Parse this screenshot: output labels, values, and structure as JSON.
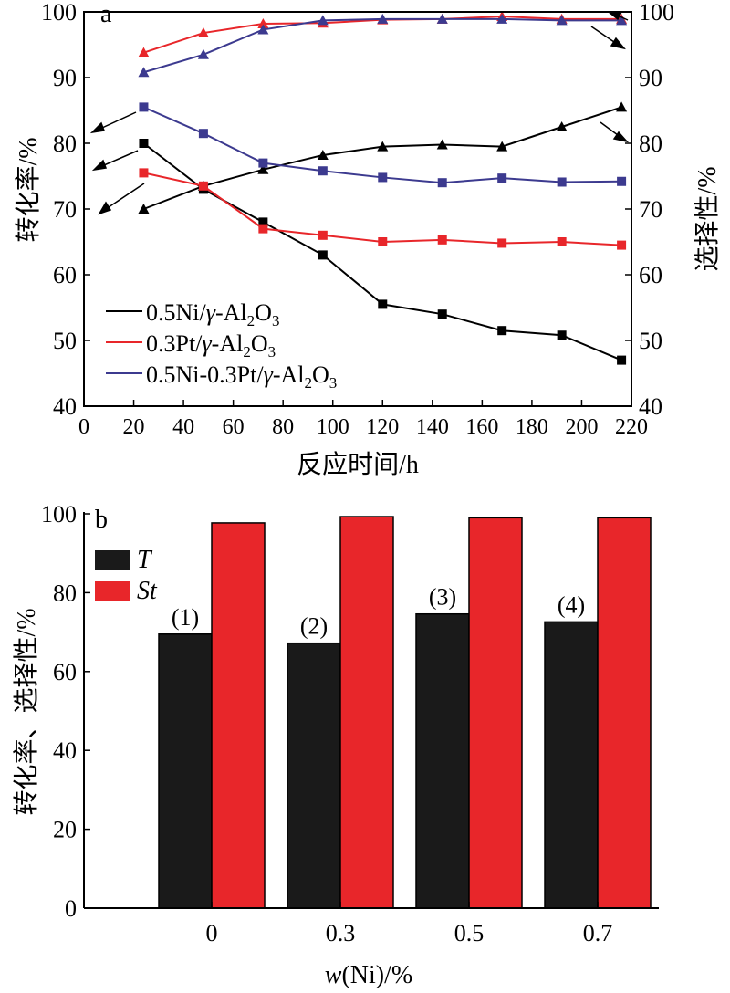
{
  "chart_data": [
    {
      "panel_label": "a",
      "type": "line",
      "xlabel": "反应时间/h",
      "ylabel_left": "转化率/%",
      "ylabel_right": "选择性/%",
      "xlim": [
        0,
        220
      ],
      "xticks": [
        0,
        20,
        40,
        60,
        80,
        100,
        120,
        140,
        160,
        180,
        200,
        220
      ],
      "ylim_left": [
        40,
        100
      ],
      "ylim_right": [
        40,
        100
      ],
      "yticks": [
        40,
        50,
        60,
        70,
        80,
        90,
        100
      ],
      "legend_position": "bottom-left",
      "legend": [
        {
          "prefix": "0.5Ni/",
          "gamma": "γ",
          "mid": "-Al",
          "sub1": "2",
          "o": "O",
          "sub2": "3",
          "color": "#000000"
        },
        {
          "prefix": "0.3Pt/",
          "gamma": "γ",
          "mid": "-Al",
          "sub1": "2",
          "o": "O",
          "sub2": "3",
          "color": "#e8262a"
        },
        {
          "prefix": "0.5Ni-0.3Pt/",
          "gamma": "γ",
          "mid": "-Al",
          "sub1": "2",
          "o": "O",
          "sub2": "3",
          "color": "#3c3a8f"
        }
      ],
      "series": [
        {
          "catalyst": "0.5Ni",
          "measure": "conversion",
          "axis": "left",
          "marker": "square",
          "color": "#000000",
          "x": [
            24,
            48,
            72,
            96,
            120,
            144,
            168,
            192,
            216
          ],
          "y": [
            80.0,
            73.0,
            68.0,
            63.0,
            55.5,
            54.0,
            51.5,
            50.8,
            47.0
          ]
        },
        {
          "catalyst": "0.5Ni",
          "measure": "selectivity",
          "axis": "right",
          "marker": "triangle",
          "color": "#000000",
          "x": [
            24,
            48,
            72,
            96,
            120,
            144,
            168,
            192,
            216
          ],
          "y": [
            70.0,
            73.5,
            76.0,
            78.2,
            79.5,
            79.8,
            79.5,
            82.5,
            85.5
          ]
        },
        {
          "catalyst": "0.3Pt",
          "measure": "conversion",
          "axis": "left",
          "marker": "square",
          "color": "#e8262a",
          "x": [
            24,
            48,
            72,
            96,
            120,
            144,
            168,
            192,
            216
          ],
          "y": [
            75.5,
            73.5,
            67.0,
            66.0,
            65.0,
            65.3,
            64.8,
            65.0,
            64.5
          ]
        },
        {
          "catalyst": "0.3Pt",
          "measure": "selectivity",
          "axis": "right",
          "marker": "triangle",
          "color": "#e8262a",
          "x": [
            24,
            48,
            72,
            96,
            120,
            144,
            168,
            192,
            216
          ],
          "y": [
            93.8,
            96.8,
            98.2,
            98.3,
            98.8,
            98.9,
            99.3,
            98.9,
            98.9
          ]
        },
        {
          "catalyst": "0.5Ni-0.3Pt",
          "measure": "conversion",
          "axis": "left",
          "marker": "square",
          "color": "#3c3a8f",
          "x": [
            24,
            48,
            72,
            96,
            120,
            144,
            168,
            192,
            216
          ],
          "y": [
            85.5,
            81.5,
            77.0,
            75.8,
            74.8,
            74.0,
            74.7,
            74.1,
            74.2
          ]
        },
        {
          "catalyst": "0.5Ni-0.3Pt",
          "measure": "selectivity",
          "axis": "right",
          "marker": "triangle",
          "color": "#3c3a8f",
          "x": [
            24,
            48,
            72,
            96,
            120,
            144,
            168,
            192,
            216
          ],
          "y": [
            90.8,
            93.5,
            97.3,
            98.7,
            98.9,
            98.9,
            98.9,
            98.7,
            98.7
          ]
        }
      ]
    },
    {
      "panel_label": "b",
      "type": "bar",
      "xlabel_italic": "w",
      "xlabel_rest": "(Ni)/%",
      "ylabel": "转化率、选择性/%",
      "ylim": [
        0,
        100
      ],
      "yticks": [
        0,
        20,
        40,
        60,
        80,
        100
      ],
      "categories": [
        "0",
        "0.3",
        "0.5",
        "0.7"
      ],
      "group_labels": [
        "(1)",
        "(2)",
        "(3)",
        "(4)"
      ],
      "legend_position": "top-left",
      "series": [
        {
          "name": "T",
          "color": "#1a1a1a",
          "values": [
            69.5,
            67.2,
            74.6,
            72.6
          ]
        },
        {
          "name": "St",
          "color": "#e8262a",
          "values": [
            97.7,
            99.3,
            99.0,
            99.0
          ]
        }
      ]
    }
  ]
}
